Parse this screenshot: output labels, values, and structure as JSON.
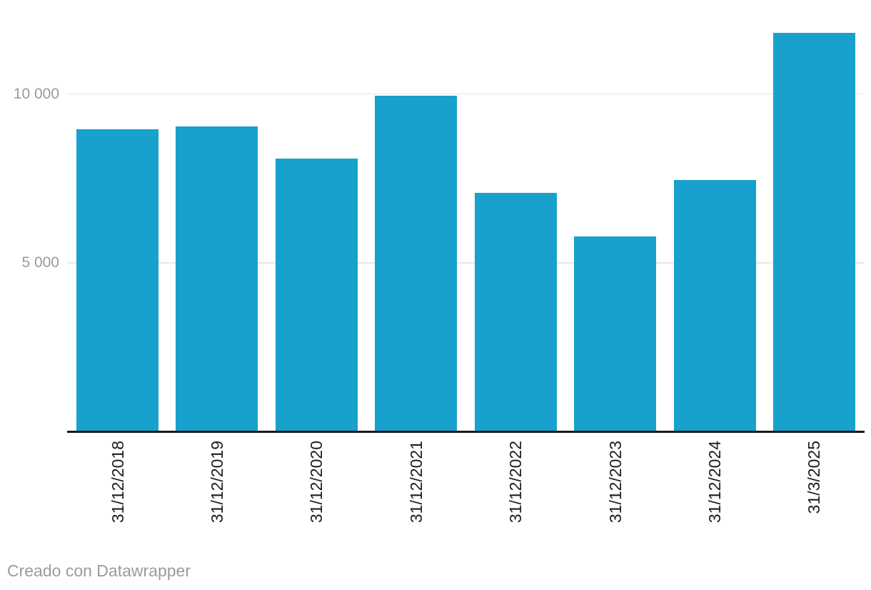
{
  "chart_data": {
    "type": "bar",
    "categories": [
      "31/12/2018",
      "31/12/2019",
      "31/12/2020",
      "31/12/2021",
      "31/12/2022",
      "31/12/2023",
      "31/12/2024",
      "31/3/2025"
    ],
    "values": [
      8940,
      9020,
      8080,
      9940,
      7060,
      5780,
      7450,
      11790
    ],
    "title": "",
    "xlabel": "",
    "ylabel": "",
    "ylim": [
      0,
      12800
    ],
    "yticks": [
      {
        "value": 5000,
        "label": "5 000"
      },
      {
        "value": 10000,
        "label": "10 000"
      }
    ],
    "grid": true,
    "legend_position": "none",
    "x_labels_rotated_degrees": -90
  },
  "footer": {
    "attribution": "Creado con Datawrapper"
  },
  "colors": {
    "bar": "#18a1cd",
    "axis_line": "#191919",
    "gridline": "#e8e8e8",
    "y_tick_label": "#9a9a9a",
    "x_tick_label": "#1d1d1d",
    "footer_text": "#9b9b9b",
    "background": "#ffffff"
  }
}
